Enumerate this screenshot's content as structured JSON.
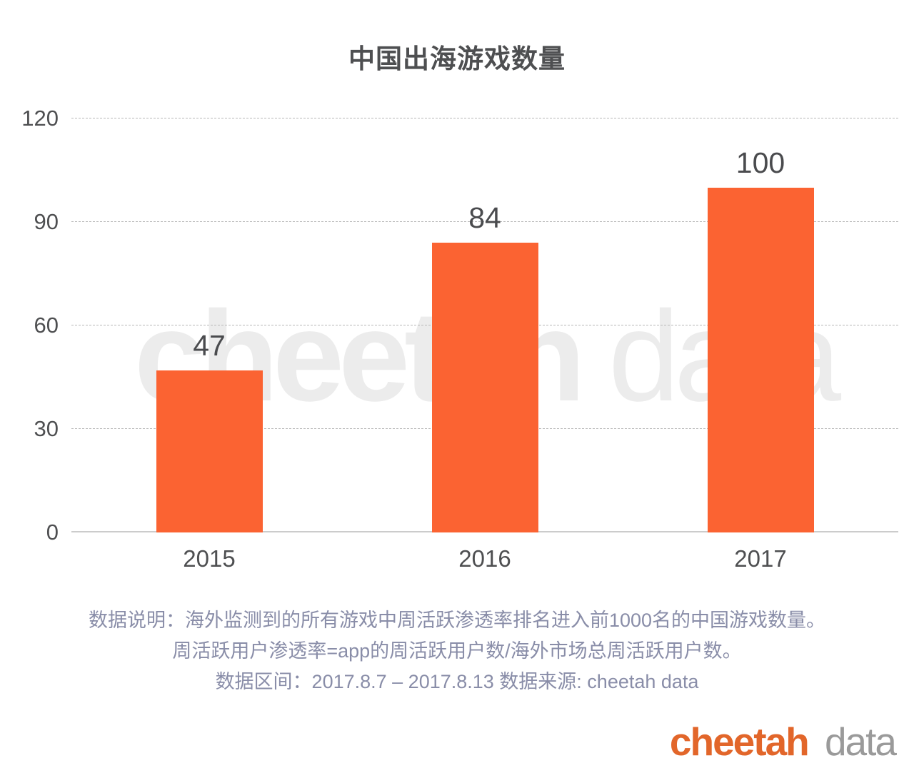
{
  "title": "中国出海游戏数量",
  "chart_data": {
    "type": "bar",
    "title": "中国出海游戏数量",
    "categories": [
      "2015",
      "2016",
      "2017"
    ],
    "values": [
      47,
      84,
      100
    ],
    "xlabel": "",
    "ylabel": "",
    "ylim": [
      0,
      120
    ],
    "yticks": [
      0,
      30,
      60,
      90,
      120
    ],
    "grid": "horizontal-dashed",
    "legend_position": "none",
    "bar_color": "#fb6332",
    "value_labels": [
      "47",
      "84",
      "100"
    ]
  },
  "watermark": {
    "word_bold": "cheetah",
    "word_light": "data"
  },
  "footnotes": [
    "数据说明：海外监测到的所有游戏中周活跃渗透率排名进入前1000名的中国游戏数量。",
    "周活跃用户渗透率=app的周活跃用户数/海外市场总周活跃用户数。",
    "数据区间：2017.8.7 – 2017.8.13 数据来源: cheetah data"
  ],
  "logo": {
    "word_bold": "cheetah",
    "word_light": "data"
  },
  "colors": {
    "bar": "#fb6332",
    "title_text": "#4e4f51",
    "tick_text": "#4e4f51",
    "value_label_text": "#4a4b4e",
    "note_text": "#898da8",
    "gridline": "#b8b8b8",
    "axis_line": "#cccccc",
    "watermark": "#ececec",
    "logo_orange": "#e2662a",
    "logo_gray": "#9a9a9a",
    "background": "#ffffff"
  }
}
